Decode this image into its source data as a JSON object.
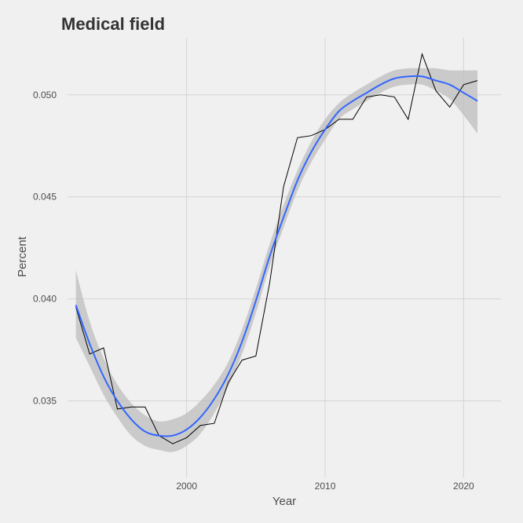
{
  "chart_data": {
    "type": "line",
    "title": "Medical field",
    "xlabel": "Year",
    "ylabel": "Percent",
    "xlim": [
      1991.4,
      2022.7
    ],
    "ylim": [
      0.03125,
      0.0528
    ],
    "x_ticks": [
      2000,
      2010,
      2020
    ],
    "y_ticks": [
      0.035,
      0.04,
      0.045,
      0.05
    ],
    "x_tick_labels": [
      "2000",
      "2010",
      "2020"
    ],
    "y_tick_labels": [
      "0.035",
      "0.040",
      "0.045",
      "0.050"
    ],
    "grid": true,
    "legend": "none",
    "colors": {
      "background": "#f0f0f0",
      "grid": "#d4d4d4",
      "line": "#000000",
      "smooth": "#3366ff",
      "ribbon": "#bebebe"
    },
    "series": [
      {
        "type": "line",
        "x": [
          1992,
          1993,
          1994,
          1995,
          1996,
          1997,
          1998,
          1999,
          2000,
          2001,
          2002,
          2003,
          2004,
          2005,
          2006,
          2007,
          2008,
          2009,
          2010,
          2011,
          2012,
          2013,
          2014,
          2015,
          2016,
          2017,
          2018,
          2019,
          2020,
          2021
        ],
        "values": [
          0.0396,
          0.0373,
          0.0376,
          0.0346,
          0.0347,
          0.0347,
          0.0333,
          0.0329,
          0.0332,
          0.0338,
          0.0339,
          0.0359,
          0.037,
          0.0372,
          0.0408,
          0.0455,
          0.0479,
          0.048,
          0.0483,
          0.0488,
          0.0488,
          0.0499,
          0.05,
          0.0499,
          0.0488,
          0.052,
          0.0502,
          0.0494,
          0.0505,
          0.0507
        ]
      },
      {
        "type": "smooth",
        "x": [
          1992,
          1993,
          1994,
          1995,
          1996,
          1997,
          1998,
          1999,
          2000,
          2001,
          2002,
          2003,
          2004,
          2005,
          2006,
          2007,
          2008,
          2009,
          2010,
          2011,
          2012,
          2013,
          2014,
          2015,
          2016,
          2017,
          2018,
          2019,
          2020,
          2021
        ],
        "values": [
          0.0397,
          0.0378,
          0.0362,
          0.035,
          0.0341,
          0.0335,
          0.0333,
          0.0333,
          0.0336,
          0.0342,
          0.0351,
          0.0363,
          0.0379,
          0.0399,
          0.0421,
          0.044,
          0.0458,
          0.0472,
          0.0483,
          0.0492,
          0.0497,
          0.0501,
          0.0505,
          0.0508,
          0.0509,
          0.0509,
          0.0507,
          0.0505,
          0.0501,
          0.0497
        ],
        "ribbon_lower": [
          0.0381,
          0.0367,
          0.0353,
          0.0342,
          0.0333,
          0.0328,
          0.0326,
          0.0325,
          0.0328,
          0.0334,
          0.0344,
          0.0357,
          0.0373,
          0.0393,
          0.0416,
          0.0435,
          0.0453,
          0.0467,
          0.0478,
          0.0488,
          0.0493,
          0.0497,
          0.0501,
          0.0504,
          0.0505,
          0.0505,
          0.0502,
          0.0498,
          0.049,
          0.0481
        ],
        "ribbon_upper": [
          0.0414,
          0.0389,
          0.0371,
          0.0358,
          0.0349,
          0.0343,
          0.034,
          0.0341,
          0.0344,
          0.035,
          0.0358,
          0.0369,
          0.0385,
          0.0405,
          0.0427,
          0.0446,
          0.0463,
          0.0477,
          0.0488,
          0.0496,
          0.0501,
          0.0505,
          0.0509,
          0.0512,
          0.0513,
          0.0513,
          0.0513,
          0.0512,
          0.0512,
          0.0512
        ]
      }
    ]
  }
}
